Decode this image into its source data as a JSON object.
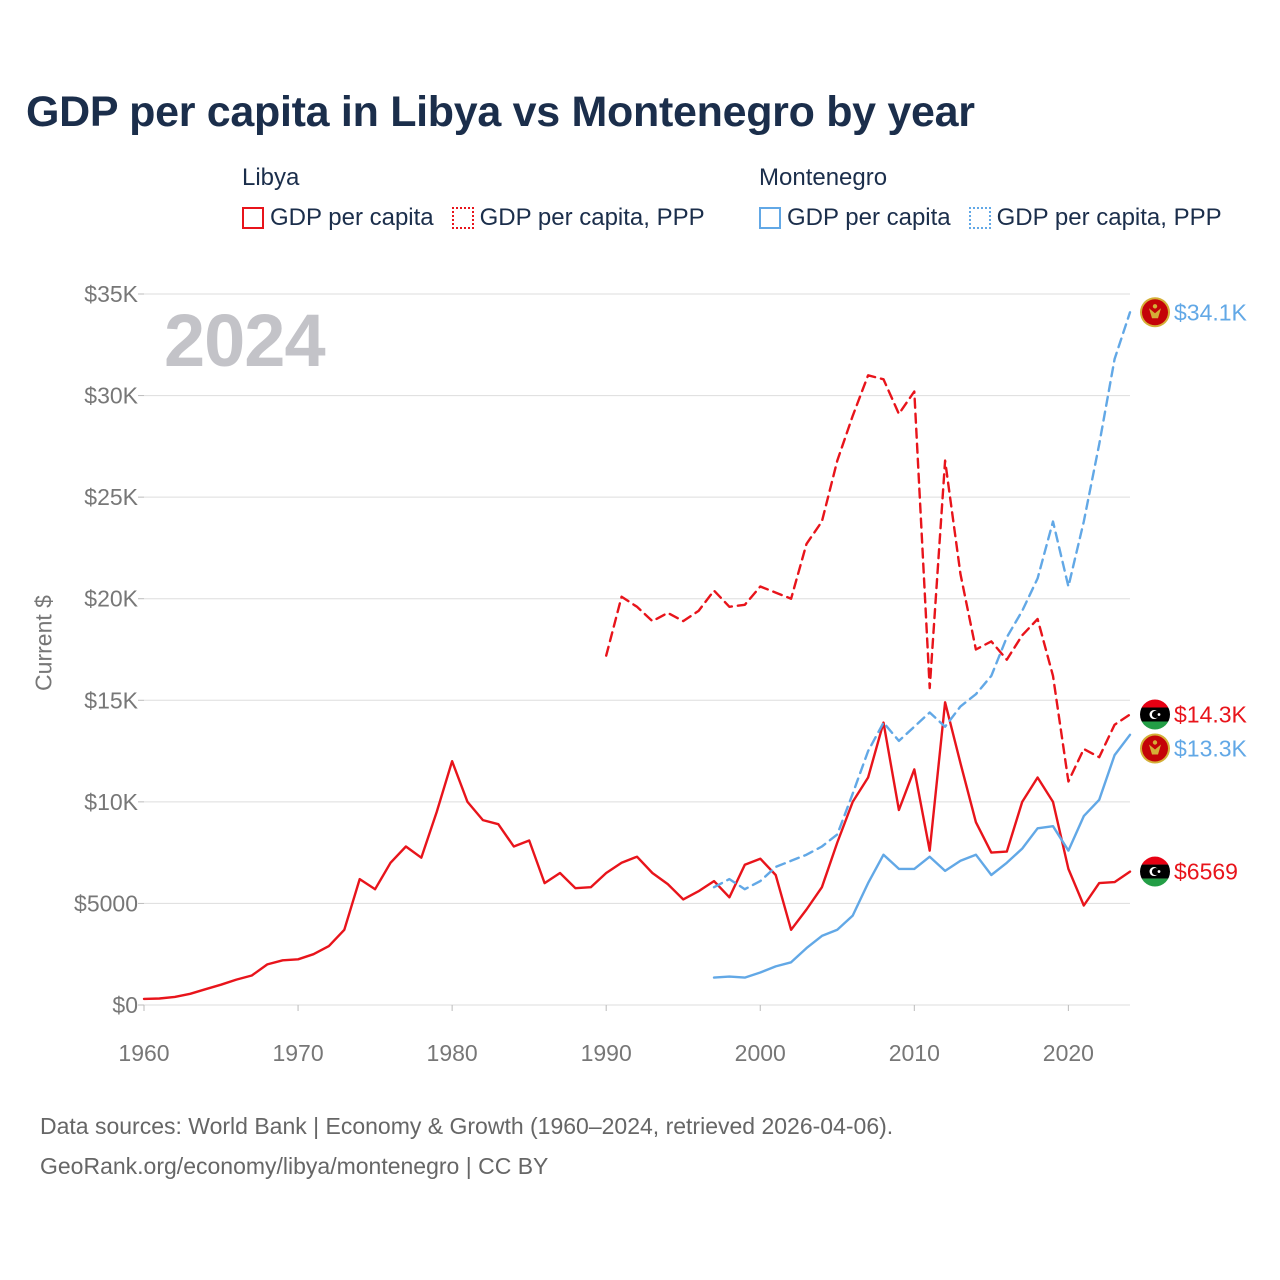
{
  "title": "GDP per capita in Libya vs Montenegro by year",
  "year_watermark": "2024",
  "legend": {
    "groups": [
      {
        "name": "Libya",
        "items": [
          "GDP per capita",
          "GDP per capita, PPP"
        ]
      },
      {
        "name": "Montenegro",
        "items": [
          "GDP per capita",
          "GDP per capita, PPP"
        ]
      }
    ]
  },
  "footer": {
    "line1": "Data sources: World Bank | Economy & Growth (1960–2024, retrieved 2026-04-06).",
    "line2": "GeoRank.org/economy/libya/montenegro | CC BY"
  },
  "colors": {
    "libya": "#e8141b",
    "montenegro": "#62a8e6",
    "grid": "#dddddd",
    "axis_text": "#777777"
  },
  "chart_data": {
    "type": "line",
    "title": "GDP per capita in Libya vs Montenegro by year",
    "xlabel": "",
    "ylabel": "Current $",
    "xlim": [
      1960,
      2024
    ],
    "ylim": [
      0,
      35000
    ],
    "x_ticks": [
      1960,
      1970,
      1980,
      1990,
      2000,
      2010,
      2020
    ],
    "y_ticks": [
      0,
      5000,
      10000,
      15000,
      20000,
      25000,
      30000,
      35000
    ],
    "y_tick_labels": [
      "$0",
      "$5000",
      "$10K",
      "$15K",
      "$20K",
      "$25K",
      "$30K",
      "$35K"
    ],
    "series": [
      {
        "name": "Libya GDP per capita",
        "country": "libya",
        "style": "solid",
        "end_label": "$6569",
        "x": [
          1960,
          1961,
          1962,
          1963,
          1964,
          1965,
          1966,
          1967,
          1968,
          1969,
          1970,
          1971,
          1972,
          1973,
          1974,
          1975,
          1976,
          1977,
          1978,
          1979,
          1980,
          1981,
          1982,
          1983,
          1984,
          1985,
          1986,
          1987,
          1988,
          1989,
          1990,
          1991,
          1992,
          1993,
          1994,
          1995,
          1996,
          1997,
          1998,
          1999,
          2000,
          2001,
          2002,
          2003,
          2004,
          2005,
          2006,
          2007,
          2008,
          2009,
          2010,
          2011,
          2012,
          2013,
          2014,
          2015,
          2016,
          2017,
          2018,
          2019,
          2020,
          2021,
          2022,
          2023,
          2024
        ],
        "values": [
          300,
          320,
          400,
          550,
          780,
          1000,
          1250,
          1450,
          2000,
          2200,
          2250,
          2500,
          2900,
          3700,
          6200,
          5700,
          7000,
          7800,
          7250,
          9500,
          12000,
          10000,
          9100,
          8900,
          7800,
          8100,
          6000,
          6500,
          5750,
          5800,
          6500,
          7000,
          7300,
          6500,
          5950,
          5200,
          5600,
          6100,
          5300,
          6900,
          7200,
          6400,
          3700,
          4700,
          5800,
          8000,
          10000,
          11200,
          13900,
          9600,
          11600,
          7600,
          14900,
          11900,
          9000,
          7500,
          7550,
          10000,
          11200,
          10000,
          6700,
          4900,
          6000,
          6050,
          6569
        ]
      },
      {
        "name": "Libya GDP per capita, PPP",
        "country": "libya",
        "style": "dashed",
        "end_label": "$14.3K",
        "x": [
          1990,
          1991,
          1992,
          1993,
          1994,
          1995,
          1996,
          1997,
          1998,
          1999,
          2000,
          2001,
          2002,
          2003,
          2004,
          2005,
          2006,
          2007,
          2008,
          2009,
          2010,
          2011,
          2012,
          2013,
          2014,
          2015,
          2016,
          2017,
          2018,
          2019,
          2020,
          2021,
          2022,
          2023,
          2024
        ],
        "values": [
          17200,
          20100,
          19600,
          18900,
          19300,
          18900,
          19400,
          20400,
          19600,
          19700,
          20600,
          20300,
          20000,
          22700,
          23800,
          26800,
          29000,
          31000,
          30800,
          29100,
          30200,
          15600,
          26800,
          21200,
          17500,
          17900,
          17000,
          18200,
          19000,
          16200,
          11000,
          12600,
          12200,
          13800,
          14300
        ]
      },
      {
        "name": "Montenegro GDP per capita",
        "country": "montenegro",
        "style": "solid",
        "end_label": "$13.3K",
        "x": [
          1997,
          1998,
          1999,
          2000,
          2001,
          2002,
          2003,
          2004,
          2005,
          2006,
          2007,
          2008,
          2009,
          2010,
          2011,
          2012,
          2013,
          2014,
          2015,
          2016,
          2017,
          2018,
          2019,
          2020,
          2021,
          2022,
          2023,
          2024
        ],
        "values": [
          1350,
          1400,
          1350,
          1600,
          1900,
          2100,
          2800,
          3400,
          3700,
          4400,
          6000,
          7400,
          6700,
          6700,
          7300,
          6600,
          7100,
          7400,
          6400,
          7000,
          7700,
          8700,
          8800,
          7600,
          9300,
          10100,
          12300,
          13300
        ]
      },
      {
        "name": "Montenegro GDP per capita, PPP",
        "country": "montenegro",
        "style": "dashed",
        "end_label": "$34.1K",
        "x": [
          1997,
          1998,
          1999,
          2000,
          2001,
          2002,
          2003,
          2004,
          2005,
          2006,
          2007,
          2008,
          2009,
          2010,
          2011,
          2012,
          2013,
          2014,
          2015,
          2016,
          2017,
          2018,
          2019,
          2020,
          2021,
          2022,
          2023,
          2024
        ],
        "values": [
          5800,
          6200,
          5700,
          6100,
          6800,
          7100,
          7400,
          7800,
          8400,
          10400,
          12500,
          13900,
          13000,
          13700,
          14400,
          13700,
          14700,
          15300,
          16200,
          18100,
          19400,
          21000,
          23800,
          20600,
          23800,
          27600,
          31800,
          34100
        ]
      }
    ]
  }
}
